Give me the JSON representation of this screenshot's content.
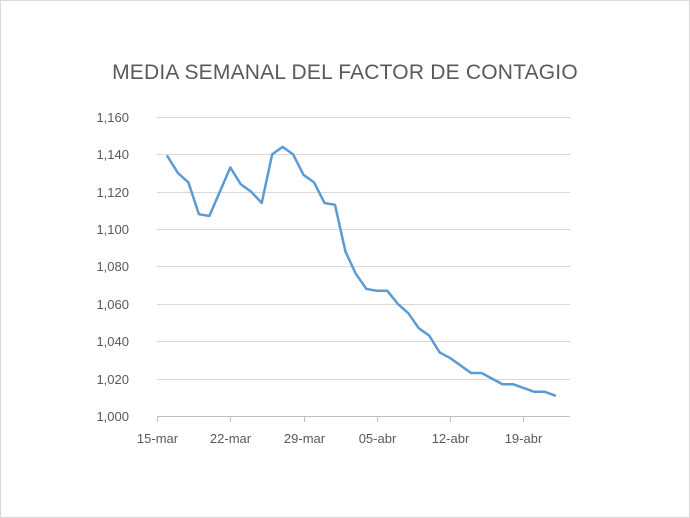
{
  "chart_data": {
    "type": "line",
    "title": "MEDIA SEMANAL DEL FACTOR DE CONTAGIO",
    "xlabel": "",
    "ylabel": "",
    "x_start": "2020-03-16",
    "x_end": "2020-04-22",
    "x_ticks": [
      {
        "date": "2020-03-15",
        "label": "15-mar"
      },
      {
        "date": "2020-03-22",
        "label": "22-mar"
      },
      {
        "date": "2020-03-29",
        "label": "29-mar"
      },
      {
        "date": "2020-04-05",
        "label": "05-abr"
      },
      {
        "date": "2020-04-12",
        "label": "12-abr"
      },
      {
        "date": "2020-04-19",
        "label": "19-abr"
      }
    ],
    "y_ticks": [
      {
        "value": 1.0,
        "label": "1,000"
      },
      {
        "value": 1.02,
        "label": "1,020"
      },
      {
        "value": 1.04,
        "label": "1,040"
      },
      {
        "value": 1.06,
        "label": "1,060"
      },
      {
        "value": 1.08,
        "label": "1,080"
      },
      {
        "value": 1.1,
        "label": "1,100"
      },
      {
        "value": 1.12,
        "label": "1,120"
      },
      {
        "value": 1.14,
        "label": "1,140"
      },
      {
        "value": 1.16,
        "label": "1,160"
      }
    ],
    "ylim": [
      1.0,
      1.16
    ],
    "grid": true,
    "legend": "none",
    "series": [
      {
        "color": "#5b9bd5",
        "values": [
          1.139,
          1.13,
          1.125,
          1.108,
          1.107,
          1.12,
          1.133,
          1.124,
          1.12,
          1.114,
          1.14,
          1.144,
          1.14,
          1.129,
          1.125,
          1.114,
          1.113,
          1.088,
          1.076,
          1.068,
          1.067,
          1.067,
          1.06,
          1.055,
          1.047,
          1.043,
          1.034,
          1.031,
          1.027,
          1.023,
          1.023,
          1.02,
          1.017,
          1.017,
          1.015,
          1.013,
          1.013,
          1.011
        ]
      }
    ],
    "colors": {
      "line": "#5b9bd5",
      "grid": "#d9d9d9",
      "axis": "#bfbfbf",
      "text": "#595959"
    }
  }
}
